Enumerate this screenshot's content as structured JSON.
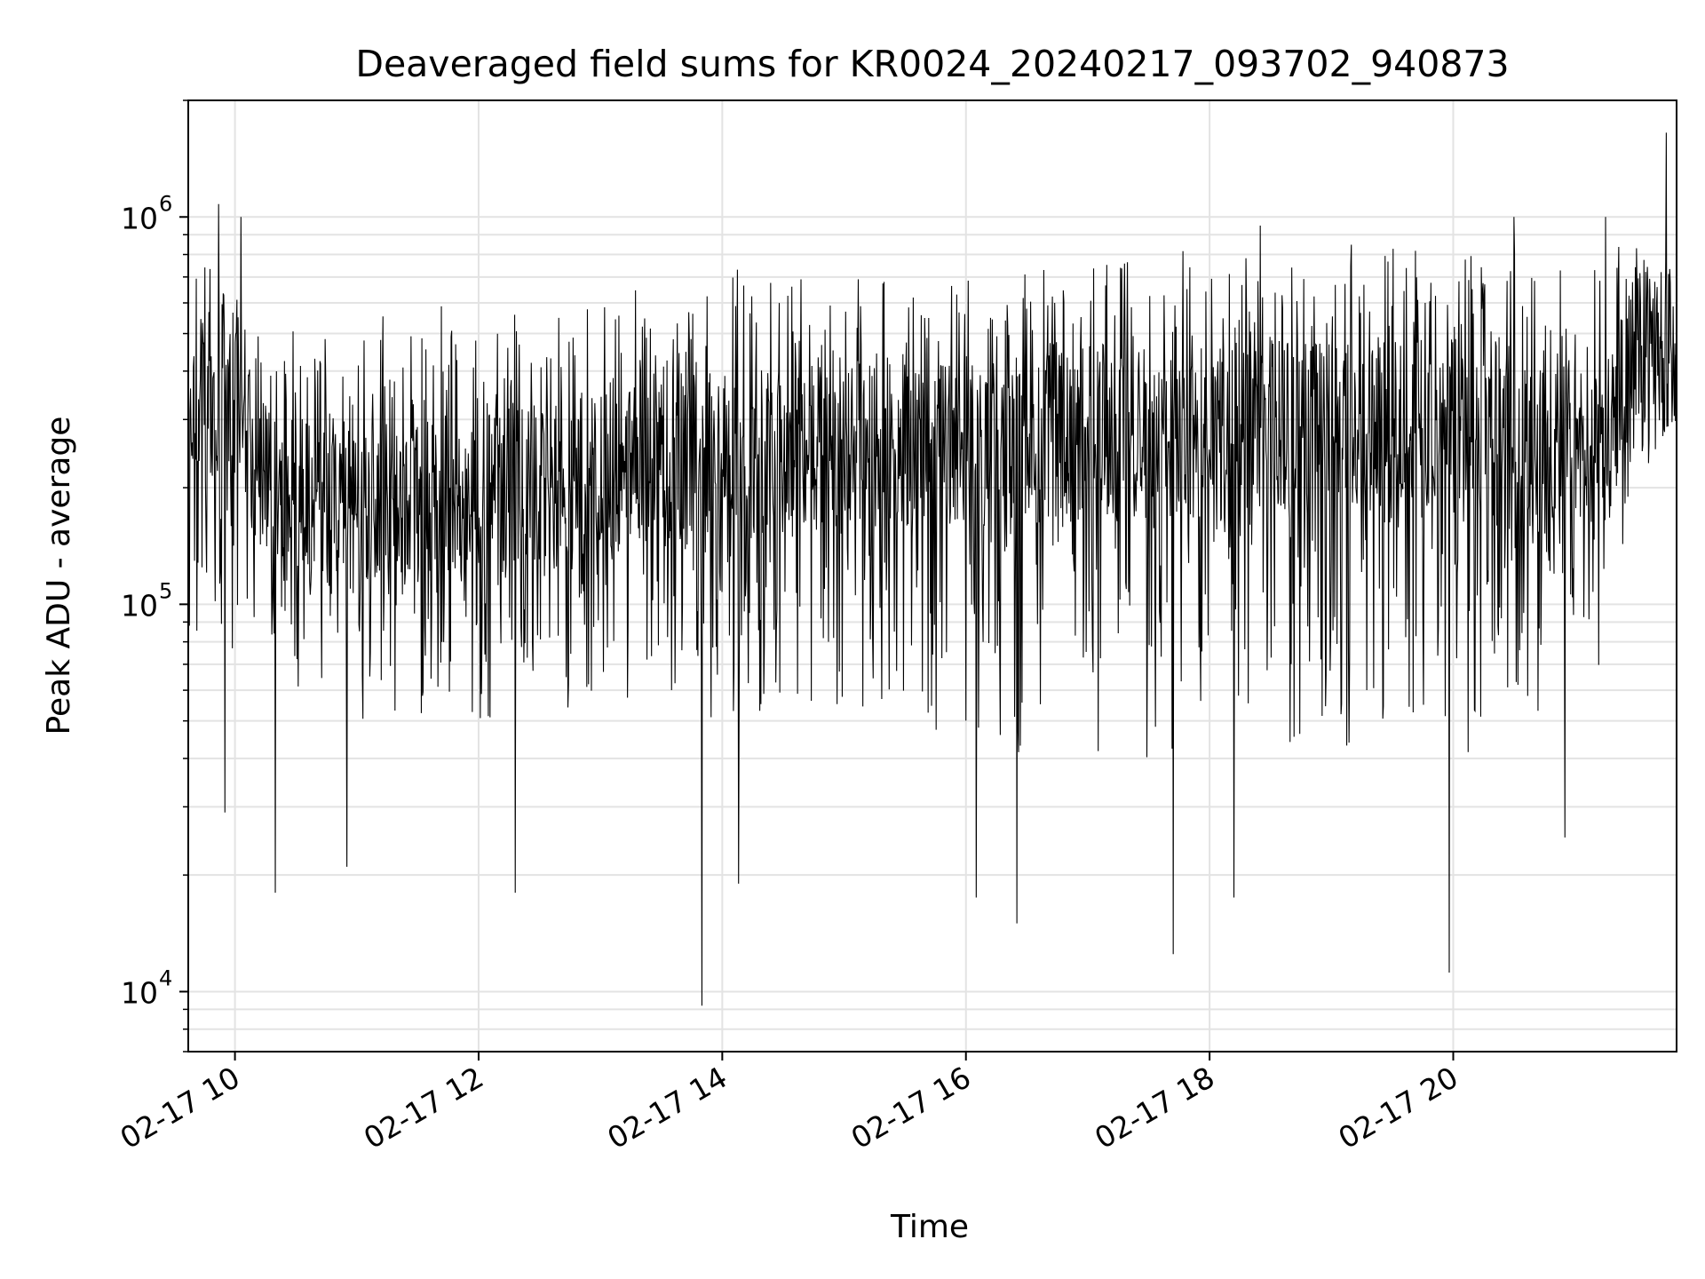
{
  "chart_data": {
    "type": "line",
    "title": "Deaveraged field sums for KR0024_20240217_093702_940873",
    "xlabel": "Time",
    "ylabel": "Peak ADU - average",
    "yscale": "log",
    "ylim": [
      7000,
      2000000
    ],
    "xlim": [
      "2024-02-17T09:37",
      "2024-02-17T21:50"
    ],
    "grid": true,
    "line_color": "#000000",
    "x_ticks": [
      {
        "value": "2024-02-17T10:00",
        "label": "02-17 10"
      },
      {
        "value": "2024-02-17T12:00",
        "label": "02-17 12"
      },
      {
        "value": "2024-02-17T14:00",
        "label": "02-17 14"
      },
      {
        "value": "2024-02-17T16:00",
        "label": "02-17 16"
      },
      {
        "value": "2024-02-17T18:00",
        "label": "02-17 18"
      },
      {
        "value": "2024-02-17T20:00",
        "label": "02-17 20"
      }
    ],
    "y_ticks": [
      {
        "value": 10000,
        "base": "10",
        "exp": "4"
      },
      {
        "value": 100000,
        "base": "10",
        "exp": "5"
      },
      {
        "value": 1000000,
        "base": "10",
        "exp": "6"
      }
    ],
    "series": [
      {
        "x": [
          "2024-02-17T09:37",
          "2024-02-17T09:40",
          "2024-02-17T09:45",
          "2024-02-17T09:50",
          "2024-02-17T09:55",
          "2024-02-17T10:00",
          "2024-02-17T10:05",
          "2024-02-17T10:15",
          "2024-02-17T10:30",
          "2024-02-17T10:45",
          "2024-02-17T11:00",
          "2024-02-17T11:30",
          "2024-02-17T12:00",
          "2024-02-17T12:30",
          "2024-02-17T13:00",
          "2024-02-17T13:30",
          "2024-02-17T13:50",
          "2024-02-17T14:00",
          "2024-02-17T14:30",
          "2024-02-17T15:00",
          "2024-02-17T15:30",
          "2024-02-17T16:00",
          "2024-02-17T16:30",
          "2024-02-17T17:00",
          "2024-02-17T17:30",
          "2024-02-17T17:45",
          "2024-02-17T18:00",
          "2024-02-17T18:30",
          "2024-02-17T19:00",
          "2024-02-17T19:30",
          "2024-02-17T20:00",
          "2024-02-17T20:30",
          "2024-02-17T21:00",
          "2024-02-17T21:15",
          "2024-02-17T21:30",
          "2024-02-17T21:45",
          "2024-02-17T21:50"
        ],
        "y": [
          250000,
          300000,
          350000,
          320000,
          360000,
          400000,
          300000,
          200000,
          190000,
          180000,
          170000,
          180000,
          190000,
          200000,
          210000,
          230000,
          240000,
          245000,
          250000,
          255000,
          260000,
          265000,
          270000,
          270000,
          275000,
          280000,
          285000,
          285000,
          285000,
          285000,
          275000,
          260000,
          250000,
          260000,
          430000,
          450000,
          470000
        ],
        "y_low": [
          40000,
          80000,
          70000,
          100000,
          60000,
          80000,
          60000,
          60000,
          60000,
          60000,
          50000,
          50000,
          50000,
          50000,
          50000,
          60000,
          40000,
          50000,
          50000,
          50000,
          50000,
          45000,
          40000,
          40000,
          40000,
          35000,
          45000,
          40000,
          40000,
          45000,
          40000,
          45000,
          50000,
          60000,
          200000,
          200000,
          250000
        ],
        "y_high": [
          900000,
          700000,
          900000,
          800000,
          900000,
          850000,
          700000,
          500000,
          550000,
          550000,
          550000,
          600000,
          600000,
          600000,
          650000,
          700000,
          700000,
          750000,
          700000,
          750000,
          700000,
          700000,
          750000,
          750000,
          800000,
          850000,
          900000,
          850000,
          850000,
          850000,
          800000,
          850000,
          800000,
          800000,
          900000,
          900000,
          950000
        ],
        "low_spikes": [
          {
            "x": "2024-02-17T09:55",
            "y": 29000
          },
          {
            "x": "2024-02-17T10:20",
            "y": 18000
          },
          {
            "x": "2024-02-17T10:55",
            "y": 21000
          },
          {
            "x": "2024-02-17T12:18",
            "y": 18000
          },
          {
            "x": "2024-02-17T13:50",
            "y": 9200
          },
          {
            "x": "2024-02-17T14:08",
            "y": 19000
          },
          {
            "x": "2024-02-17T16:05",
            "y": 17500
          },
          {
            "x": "2024-02-17T16:25",
            "y": 15000
          },
          {
            "x": "2024-02-17T17:42",
            "y": 12500
          },
          {
            "x": "2024-02-17T18:12",
            "y": 17500
          },
          {
            "x": "2024-02-17T19:58",
            "y": 11200
          },
          {
            "x": "2024-02-17T20:55",
            "y": 25000
          }
        ],
        "high_spikes": [
          {
            "x": "2024-02-17T09:52",
            "y": 1080000
          },
          {
            "x": "2024-02-17T10:03",
            "y": 1000000
          },
          {
            "x": "2024-02-17T18:25",
            "y": 950000
          },
          {
            "x": "2024-02-17T20:30",
            "y": 1000000
          },
          {
            "x": "2024-02-17T21:15",
            "y": 1000000
          },
          {
            "x": "2024-02-17T21:45",
            "y": 1650000
          }
        ]
      }
    ]
  }
}
